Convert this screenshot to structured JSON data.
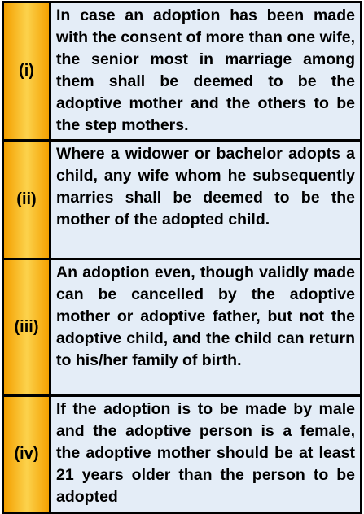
{
  "table": {
    "rows": [
      [
        "(i)",
        "In case an adoption has been made with the consent of more than one wife, the senior most in marriage among them shall be deemed to be the adoptive mother and the others to be the step mothers."
      ],
      [
        "(ii)",
        "Where a widower or bachelor adopts a child, any wife whom he subsequently marries shall be deemed to be the mother of the adopted child."
      ],
      [
        "(iii)",
        "An adoption even, though validly made can be cancelled by the adoptive mother or adoptive father, but not the adoptive child, and the child can return to his/her family of birth."
      ],
      [
        "(iv)",
        "If the adoption is to be made by male and the adoptive person is a female, the adoptive mother should be at least 21 years older than the person to be adopted"
      ]
    ]
  }
}
